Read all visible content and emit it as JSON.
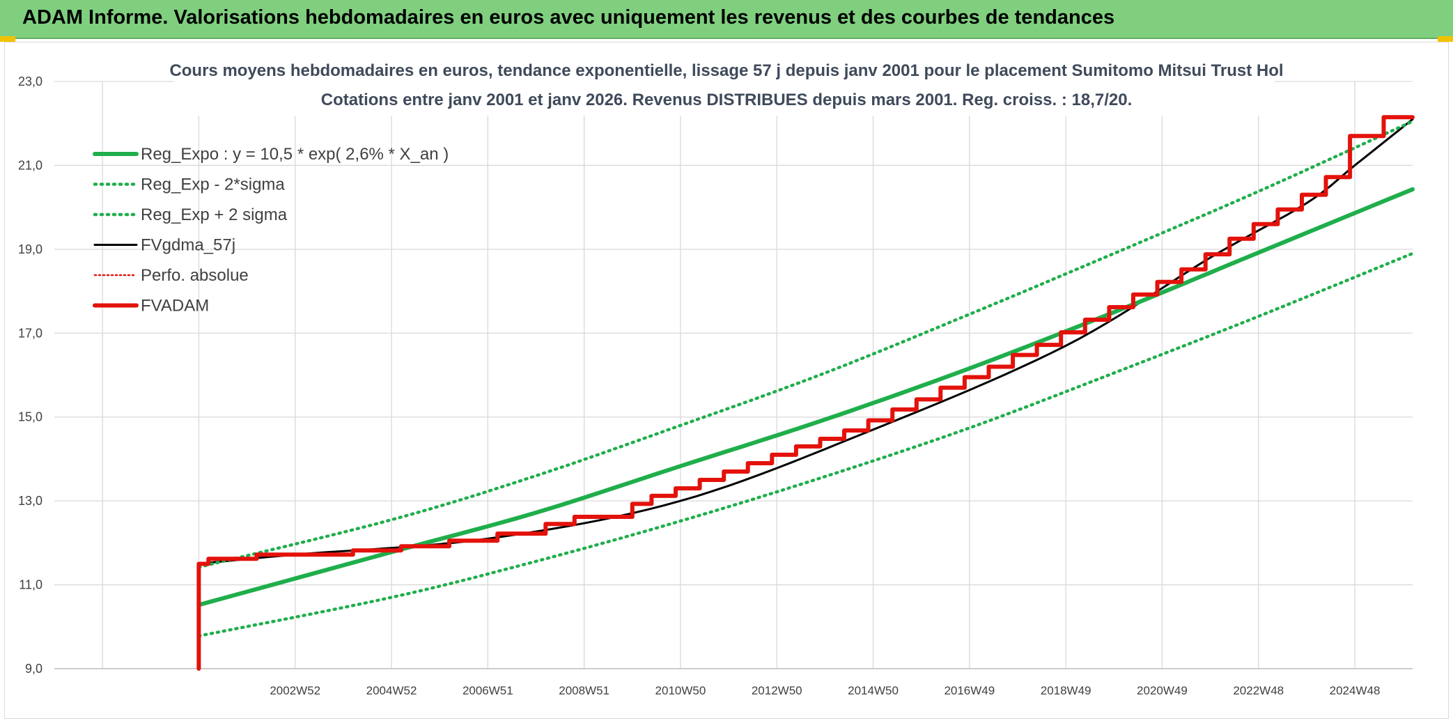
{
  "banner": {
    "title": "ADAM Informe. Valorisations hebdomadaires en euros avec uniquement les revenus et des courbes de tendances"
  },
  "colors": {
    "banner_bg": "#7fcf7f",
    "trend": "#1fae4b",
    "smoothed": "#000000",
    "adam": "#e3120b",
    "grid": "#d9d9d9"
  },
  "chart_data": {
    "type": "line",
    "title": "Cours moyens hebdomadaires en euros, tendance exponentielle, lissage 57 j depuis janv 2001 pour le placement Sumitomo Mitsui Trust Hol",
    "subtitle": "Cotations entre janv 2001 et janv 2026. Revenus DISTRIBUES depuis mars 2001. Reg. croiss. : 18,7/20.",
    "xlabel": "",
    "ylabel": "",
    "ylim": [
      9.0,
      23.0
    ],
    "yticks": [
      "9,0",
      "11,0",
      "13,0",
      "15,0",
      "17,0",
      "19,0",
      "21,0",
      "23,0"
    ],
    "xlim": [
      1998.0,
      2026.2
    ],
    "xticks": [
      {
        "label": "2002W52",
        "x": 2003.0
      },
      {
        "label": "2004W52",
        "x": 2005.0
      },
      {
        "label": "2006W51",
        "x": 2007.0
      },
      {
        "label": "2008W51",
        "x": 2009.0
      },
      {
        "label": "2010W50",
        "x": 2011.0
      },
      {
        "label": "2012W50",
        "x": 2013.0
      },
      {
        "label": "2014W50",
        "x": 2015.0
      },
      {
        "label": "2016W49",
        "x": 2017.0
      },
      {
        "label": "2018W49",
        "x": 2019.0
      },
      {
        "label": "2020W49",
        "x": 2021.0
      },
      {
        "label": "2022W48",
        "x": 2023.0
      },
      {
        "label": "2024W48",
        "x": 2025.0
      }
    ],
    "grid": true,
    "legend_position": "top-left",
    "series": [
      {
        "name": "Reg_Expo : y = 10,5 * exp( 2,6% *  X_an )",
        "style": "solid-thick",
        "color": "#1fae4b",
        "points": [
          [
            2001.0,
            10.52
          ],
          [
            2005.0,
            11.78
          ],
          [
            2008.0,
            12.72
          ],
          [
            2011.0,
            13.83
          ],
          [
            2014.0,
            14.94
          ],
          [
            2017.0,
            16.16
          ],
          [
            2020.0,
            17.5
          ],
          [
            2023.0,
            18.92
          ],
          [
            2026.2,
            20.43
          ]
        ]
      },
      {
        "name": "Reg_Exp - 2*sigma",
        "style": "dotted",
        "color": "#1fae4b",
        "points": [
          [
            2001.0,
            9.78
          ],
          [
            2005.0,
            10.7
          ],
          [
            2008.0,
            11.56
          ],
          [
            2011.0,
            12.52
          ],
          [
            2014.0,
            13.58
          ],
          [
            2017.0,
            14.74
          ],
          [
            2020.0,
            16.05
          ],
          [
            2023.0,
            17.4
          ],
          [
            2026.2,
            18.9
          ]
        ]
      },
      {
        "name": "Reg_Exp + 2 sigma",
        "style": "dotted",
        "color": "#1fae4b",
        "points": [
          [
            2001.0,
            11.42
          ],
          [
            2005.0,
            12.55
          ],
          [
            2008.0,
            13.6
          ],
          [
            2011.0,
            14.8
          ],
          [
            2014.0,
            16.05
          ],
          [
            2017.0,
            17.45
          ],
          [
            2020.0,
            18.9
          ],
          [
            2023.0,
            20.38
          ],
          [
            2026.2,
            22.05
          ]
        ]
      },
      {
        "name": "FVgdma_57j",
        "style": "solid",
        "color": "#000000",
        "points": [
          [
            2001.0,
            11.5
          ],
          [
            2003.0,
            11.72
          ],
          [
            2007.0,
            12.1
          ],
          [
            2011.0,
            13.0
          ],
          [
            2015.0,
            14.7
          ],
          [
            2019.0,
            16.7
          ],
          [
            2022.0,
            18.8
          ],
          [
            2024.0,
            20.1
          ],
          [
            2025.0,
            21.0
          ],
          [
            2026.2,
            22.1
          ]
        ]
      },
      {
        "name": "Perfo. absolue",
        "style": "dotted-thin",
        "color": "#e3120b",
        "points": []
      },
      {
        "name": "FVADAM",
        "style": "solid-thick",
        "color": "#e3120b",
        "points": [
          [
            2001.0,
            9.0
          ],
          [
            2001.0,
            11.5
          ],
          [
            2001.2,
            11.5
          ],
          [
            2001.2,
            11.62
          ],
          [
            2002.2,
            11.62
          ],
          [
            2002.2,
            11.72
          ],
          [
            2004.2,
            11.72
          ],
          [
            2004.2,
            11.82
          ],
          [
            2005.2,
            11.82
          ],
          [
            2005.2,
            11.92
          ],
          [
            2006.2,
            11.92
          ],
          [
            2006.2,
            12.05
          ],
          [
            2007.2,
            12.05
          ],
          [
            2007.2,
            12.22
          ],
          [
            2008.2,
            12.22
          ],
          [
            2008.2,
            12.45
          ],
          [
            2008.8,
            12.45
          ],
          [
            2008.8,
            12.62
          ],
          [
            2010.0,
            12.62
          ],
          [
            2010.0,
            12.93
          ],
          [
            2010.4,
            12.93
          ],
          [
            2010.4,
            13.12
          ],
          [
            2010.9,
            13.12
          ],
          [
            2010.9,
            13.3
          ],
          [
            2011.4,
            13.3
          ],
          [
            2011.4,
            13.5
          ],
          [
            2011.9,
            13.5
          ],
          [
            2011.9,
            13.7
          ],
          [
            2012.4,
            13.7
          ],
          [
            2012.4,
            13.9
          ],
          [
            2012.9,
            13.9
          ],
          [
            2012.9,
            14.1
          ],
          [
            2013.4,
            14.1
          ],
          [
            2013.4,
            14.3
          ],
          [
            2013.9,
            14.3
          ],
          [
            2013.9,
            14.48
          ],
          [
            2014.4,
            14.48
          ],
          [
            2014.4,
            14.68
          ],
          [
            2014.9,
            14.68
          ],
          [
            2014.9,
            14.92
          ],
          [
            2015.4,
            14.92
          ],
          [
            2015.4,
            15.18
          ],
          [
            2015.9,
            15.18
          ],
          [
            2015.9,
            15.42
          ],
          [
            2016.4,
            15.42
          ],
          [
            2016.4,
            15.7
          ],
          [
            2016.9,
            15.7
          ],
          [
            2016.9,
            15.95
          ],
          [
            2017.4,
            15.95
          ],
          [
            2017.4,
            16.2
          ],
          [
            2017.9,
            16.2
          ],
          [
            2017.9,
            16.48
          ],
          [
            2018.4,
            16.48
          ],
          [
            2018.4,
            16.72
          ],
          [
            2018.9,
            16.72
          ],
          [
            2018.9,
            17.02
          ],
          [
            2019.4,
            17.02
          ],
          [
            2019.4,
            17.32
          ],
          [
            2019.9,
            17.32
          ],
          [
            2019.9,
            17.62
          ],
          [
            2020.4,
            17.62
          ],
          [
            2020.4,
            17.92
          ],
          [
            2020.9,
            17.92
          ],
          [
            2020.9,
            18.22
          ],
          [
            2021.4,
            18.22
          ],
          [
            2021.4,
            18.52
          ],
          [
            2021.9,
            18.52
          ],
          [
            2021.9,
            18.88
          ],
          [
            2022.4,
            18.88
          ],
          [
            2022.4,
            19.25
          ],
          [
            2022.9,
            19.25
          ],
          [
            2022.9,
            19.6
          ],
          [
            2023.4,
            19.6
          ],
          [
            2023.4,
            19.95
          ],
          [
            2023.9,
            19.95
          ],
          [
            2023.9,
            20.3
          ],
          [
            2024.4,
            20.3
          ],
          [
            2024.4,
            20.72
          ],
          [
            2024.9,
            20.72
          ],
          [
            2024.9,
            21.7
          ],
          [
            2025.6,
            21.7
          ],
          [
            2025.6,
            22.15
          ],
          [
            2026.2,
            22.15
          ]
        ]
      }
    ]
  }
}
